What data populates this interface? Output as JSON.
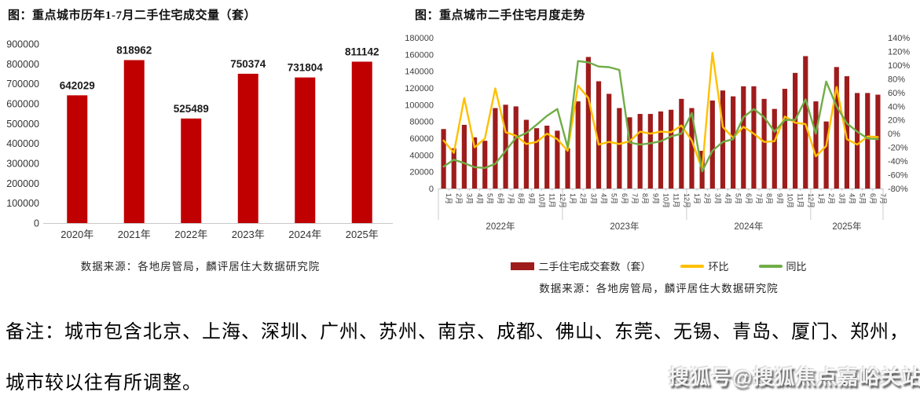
{
  "note": {
    "line1": "备注：城市包含北京、上海、深圳、广州、苏州、南京、成都、佛山、东莞、无锡、青岛、厦门、郑州，",
    "line2": "城市较以往有所调整。"
  },
  "watermark": {
    "text": "搜狐号@搜狐焦点嘉峪关站"
  },
  "chart_data": [
    {
      "id": "annual-resale-volume",
      "type": "bar",
      "title": "图：重点城市历年1-7月二手住宅成交量（套）",
      "categories": [
        "2020年",
        "2021年",
        "2022年",
        "2023年",
        "2024年",
        "2025年"
      ],
      "values": [
        642029,
        818962,
        525489,
        750374,
        731804,
        811142
      ],
      "ylim": [
        0,
        900000
      ],
      "ytick_step": 100000,
      "bar_color": "#c00000",
      "grid": "off",
      "data_labels": "on",
      "source": "数据来源：各地房管局，麟评居住大数据研究院"
    },
    {
      "id": "monthly-resale-trend",
      "type": "combo-bar-line",
      "title": "图：重点城市二手住宅月度走势",
      "year_groups": [
        {
          "label": "2022年",
          "months": 12
        },
        {
          "label": "2023年",
          "months": 12
        },
        {
          "label": "2024年",
          "months": 12
        },
        {
          "label": "2025年",
          "months": 7
        }
      ],
      "month_labels": [
        "1月",
        "2月",
        "3月",
        "4月",
        "5月",
        "6月",
        "7月",
        "8月",
        "9月",
        "10月",
        "11月",
        "12月",
        "1月",
        "2月",
        "3月",
        "4月",
        "5月",
        "6月",
        "7月",
        "8月",
        "9月",
        "10月",
        "11月",
        "12月",
        "1月",
        "2月",
        "3月",
        "4月",
        "5月",
        "6月",
        "7月",
        "8月",
        "9月",
        "10月",
        "11月",
        "12月",
        "1月",
        "2月",
        "3月",
        "4月",
        "5月",
        "6月",
        "7月"
      ],
      "left_axis": {
        "min": 0,
        "max": 180000,
        "step": 20000
      },
      "right_axis": {
        "min": -80,
        "max": 140,
        "step": 20,
        "suffix": "%"
      },
      "grid": "off",
      "legend_position": "bottom",
      "series": [
        {
          "name": "二手住宅成交套数（套）",
          "type": "bar",
          "axis": "left",
          "color": "#9e1c1c",
          "values": [
            71000,
            48000,
            76000,
            61000,
            57000,
            96000,
            100000,
            98000,
            82000,
            72000,
            75000,
            69000,
            48000,
            104000,
            157000,
            128000,
            113000,
            96000,
            85000,
            89000,
            89000,
            92000,
            94000,
            107000,
            96000,
            45000,
            105000,
            117000,
            110000,
            122000,
            122000,
            107000,
            95000,
            119000,
            138000,
            158000,
            104000,
            80000,
            145000,
            134000,
            114000,
            114000,
            112000
          ]
        },
        {
          "name": "环比",
          "type": "line",
          "axis": "right",
          "color": "#ffc000",
          "values": [
            -10,
            -28,
            52,
            -20,
            -7,
            66,
            2,
            -3,
            -15,
            -12,
            0,
            -8,
            -25,
            70,
            52,
            -16,
            -12,
            -15,
            -11,
            3,
            0,
            3,
            2,
            12,
            -10,
            -52,
            118,
            10,
            -6,
            10,
            0,
            -12,
            -11,
            25,
            16,
            14,
            -33,
            -18,
            68,
            -8,
            -16,
            -4,
            -5
          ]
        },
        {
          "name": "同比",
          "type": "line",
          "axis": "right",
          "color": "#70ad47",
          "values": [
            -48,
            -38,
            -43,
            -49,
            -50,
            -44,
            -25,
            -6,
            1,
            13,
            26,
            36,
            -20,
            106,
            104,
            98,
            97,
            93,
            -13,
            -16,
            -14,
            -11,
            -4,
            0,
            30,
            -55,
            -25,
            -12,
            -8,
            24,
            36,
            24,
            3,
            20,
            20,
            50,
            0,
            76,
            40,
            15,
            3,
            -7,
            -8
          ]
        }
      ],
      "source": "数据来源：各地房管局，麟评居住大数据研究院"
    }
  ]
}
